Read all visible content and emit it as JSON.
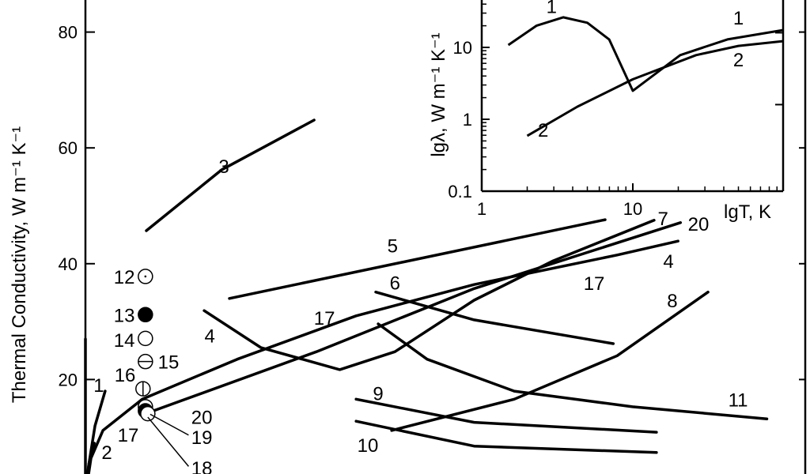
{
  "chart_data": [
    {
      "type": "line",
      "ylabel": "Thermal Conductivity, W m⁻¹ K⁻¹",
      "xlim": [
        0,
        300
      ],
      "ylim": [
        0,
        85
      ],
      "yticks": [
        20,
        40,
        60,
        80
      ],
      "grid": false,
      "series": [
        {
          "label": "3",
          "points": [
            [
              25.4,
              45.7
            ],
            [
              56.7,
              56.2
            ],
            [
              95.3,
              64.8
            ]
          ]
        },
        {
          "label": "5",
          "points": [
            [
              60,
              34.0
            ],
            [
              216.6,
              47.6
            ]
          ]
        },
        {
          "label": "6",
          "points": [
            [
              121,
              35.1
            ],
            [
              162,
              30.3
            ],
            [
              220,
              26.2
            ]
          ]
        },
        {
          "label": "4",
          "points": [
            [
              49.5,
              31.9
            ],
            [
              73.2,
              25.5
            ],
            [
              106,
              21.7
            ],
            [
              129,
              24.8
            ],
            [
              162,
              33.7
            ],
            [
              195,
              40.5
            ],
            [
              237,
              47.5
            ]
          ]
        },
        {
          "label": "17",
          "points": [
            [
              0,
              0
            ],
            [
              2.3,
              6.4
            ],
            [
              7.3,
              11.2
            ],
            [
              23.7,
              16.6
            ],
            [
              63.3,
              23.5
            ],
            [
              112.8,
              31.0
            ],
            [
              162,
              36.4
            ],
            [
              221.6,
              41.5
            ],
            [
              247,
              43.9
            ]
          ]
        },
        {
          "label": "20",
          "points": [
            [
              23.7,
              13.9
            ],
            [
              96.3,
              24.8
            ],
            [
              162,
              35.7
            ],
            [
              248,
              47.1
            ]
          ]
        },
        {
          "label": "8",
          "points": [
            [
              127.6,
              11.2
            ],
            [
              178.7,
              16.6
            ],
            [
              221.6,
              24.1
            ],
            [
              259.5,
              35.1
            ]
          ]
        },
        {
          "label": "9",
          "points": [
            [
              112.8,
              16.6
            ],
            [
              162,
              12.6
            ],
            [
              238,
              10.9
            ]
          ]
        },
        {
          "label": "10",
          "points": [
            [
              112.8,
              12.8
            ],
            [
              162,
              8.5
            ],
            [
              238,
              7.4
            ]
          ]
        },
        {
          "label": "11",
          "points": [
            [
              122,
              29.6
            ],
            [
              142.4,
              23.5
            ],
            [
              178.7,
              18.0
            ],
            [
              228,
              15.3
            ],
            [
              284,
              13.2
            ]
          ]
        },
        {
          "label": "1",
          "points": [
            [
              0.5,
              2
            ],
            [
              1.3,
              5
            ],
            [
              4,
              12
            ],
            [
              8.2,
              18
            ]
          ]
        },
        {
          "label": "2",
          "points": [
            [
              0.3,
              1
            ],
            [
              1.5,
              5.5
            ],
            [
              3.7,
              9
            ]
          ]
        },
        {
          "label": "",
          "points": [
            [
              0,
              27
            ],
            [
              0,
              0
            ]
          ]
        }
      ],
      "markers": [
        {
          "label": "12",
          "x": 25,
          "y": 37.8,
          "style": "circle-dot"
        },
        {
          "label": "13",
          "x": 25,
          "y": 31.2,
          "style": "filled"
        },
        {
          "label": "14",
          "x": 25,
          "y": 27.1,
          "style": "open"
        },
        {
          "label": "15",
          "x": 25,
          "y": 23.1,
          "style": "circle-horizontal-bar"
        },
        {
          "label": "16",
          "x": 24,
          "y": 18.4,
          "style": "circle-vertical-bar"
        },
        {
          "label": "17",
          "x": 25,
          "y": 15.3,
          "style": "open"
        },
        {
          "label": "18",
          "x": 25,
          "y": 14.6,
          "style": "filled"
        },
        {
          "label": "19",
          "x": 26,
          "y": 14.1,
          "style": "open"
        }
      ],
      "annotations": [
        {
          "text": "3",
          "x": 57.7,
          "y": 56.9
        },
        {
          "text": "5",
          "x": 128,
          "y": 43.2
        },
        {
          "text": "6",
          "x": 129,
          "y": 36.8
        },
        {
          "text": "4",
          "x": 51.8,
          "y": 27.6
        },
        {
          "text": "17",
          "x": 99.6,
          "y": 30.7
        },
        {
          "text": "17",
          "x": 212,
          "y": 36.7
        },
        {
          "text": "7",
          "x": 240.7,
          "y": 47.9
        },
        {
          "text": "20",
          "x": 255.5,
          "y": 46.9
        },
        {
          "text": "4",
          "x": 243,
          "y": 40.5
        },
        {
          "text": "8",
          "x": 244.6,
          "y": 33.7
        },
        {
          "text": "9",
          "x": 122,
          "y": 17.7
        },
        {
          "text": "10",
          "x": 117.7,
          "y": 8.7
        },
        {
          "text": "11",
          "x": 272,
          "y": 16.6
        },
        {
          "text": "12",
          "x": 16.2,
          "y": 37.8
        },
        {
          "text": "13",
          "x": 16.2,
          "y": 31.2
        },
        {
          "text": "14",
          "x": 16.2,
          "y": 26.9
        },
        {
          "text": "15",
          "x": 34.6,
          "y": 23.1
        },
        {
          "text": "16",
          "x": 16.5,
          "y": 20.9
        },
        {
          "text": "1",
          "x": 5.6,
          "y": 19.1
        },
        {
          "text": "2",
          "x": 8.9,
          "y": 7.5
        },
        {
          "text": "17",
          "x": 17.8,
          "y": 10.5
        },
        {
          "text": "20",
          "x": 48.5,
          "y": 13.6
        },
        {
          "text": "19",
          "x": 48.5,
          "y": 10.1
        },
        {
          "text": "18",
          "x": 48.5,
          "y": 4.8
        }
      ]
    },
    {
      "type": "line",
      "xlabel": "lgT, K",
      "ylabel": "lgλ, W m⁻¹ K⁻¹",
      "xscale": "log",
      "yscale": "log",
      "xlim": [
        1,
        100
      ],
      "ylim": [
        0.1,
        45
      ],
      "xticks": [
        1,
        10
      ],
      "yticks": [
        0.1,
        1,
        10
      ],
      "series": [
        {
          "label": "1",
          "points": [
            [
              1.5,
              10.8
            ],
            [
              2.3,
              20
            ],
            [
              3.46,
              26.2
            ],
            [
              5,
              22
            ],
            [
              6.97,
              12.9
            ],
            [
              10,
              2.49
            ],
            [
              20.6,
              7.8
            ],
            [
              42.3,
              12.9
            ],
            [
              98.6,
              17.4
            ]
          ]
        },
        {
          "label": "2",
          "points": [
            [
              2.0,
              0.59
            ],
            [
              4.3,
              1.5
            ],
            [
              10,
              3.6
            ],
            [
              26.2,
              7.8
            ],
            [
              50,
              10.5
            ],
            [
              98.6,
              12.2
            ]
          ]
        }
      ],
      "annotations": [
        {
          "text": "1",
          "x": 2.9,
          "y": 38
        },
        {
          "text": "1",
          "x": 50,
          "y": 26
        },
        {
          "text": "2",
          "x": 50,
          "y": 6.8
        },
        {
          "text": "2",
          "x": 2.55,
          "y": 0.72
        }
      ]
    }
  ]
}
